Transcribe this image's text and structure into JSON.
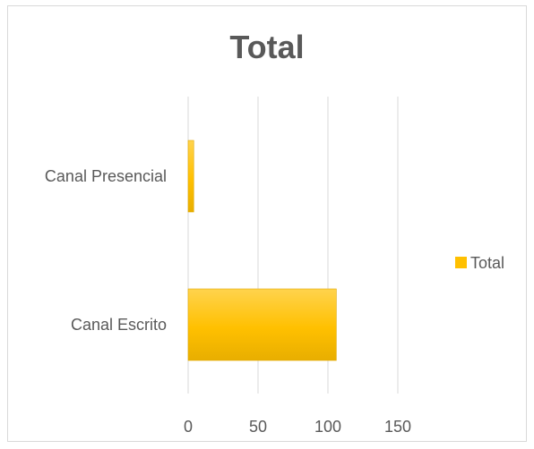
{
  "chart_data": {
    "type": "bar",
    "orientation": "horizontal",
    "title": "Total",
    "categories": [
      "Canal Presencial",
      "Canal Escrito"
    ],
    "series": [
      {
        "name": "Total",
        "values": [
          4,
          106
        ],
        "color": "#FFC000"
      }
    ],
    "xlim": [
      0,
      150
    ],
    "xticks": [
      0,
      50,
      100,
      150
    ],
    "grid": true,
    "legend_position": "right",
    "xlabel": "",
    "ylabel": ""
  }
}
